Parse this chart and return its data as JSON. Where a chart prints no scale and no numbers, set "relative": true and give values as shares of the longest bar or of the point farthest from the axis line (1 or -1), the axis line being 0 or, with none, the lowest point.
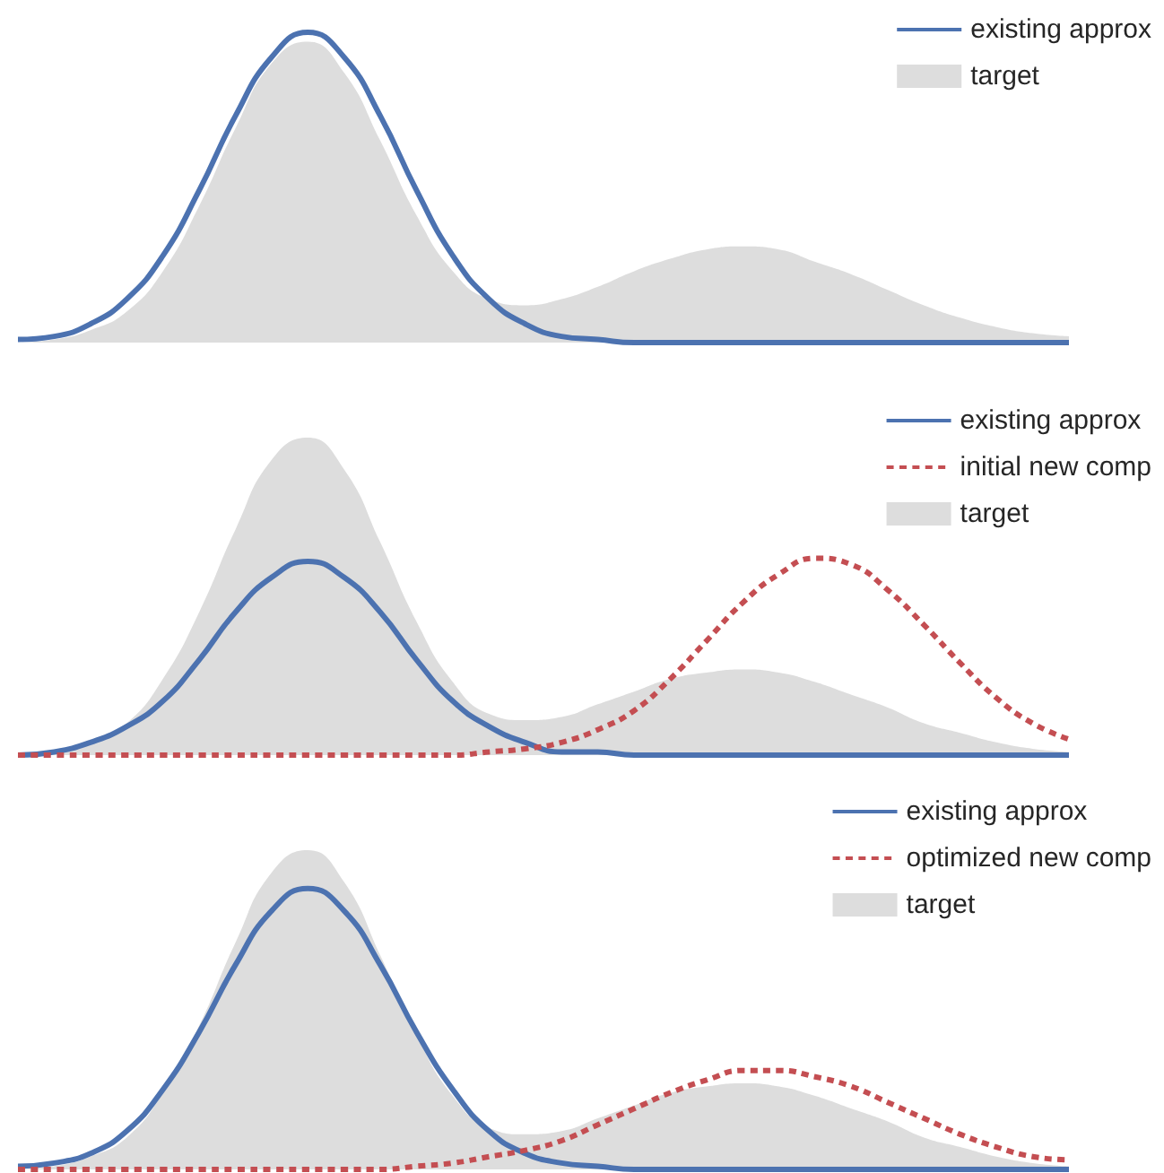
{
  "chart_data": [
    {
      "type": "line",
      "relative": true,
      "legend": "top right",
      "grid": false,
      "categories": [
        null,
        null,
        null,
        null,
        null,
        null,
        null,
        null,
        null,
        null,
        null,
        null,
        null,
        null,
        null,
        null,
        null,
        null,
        null,
        null,
        null,
        null,
        null,
        null,
        null,
        null,
        null,
        null,
        null,
        null
      ],
      "series": [
        {
          "name": "existing approx",
          "type": "line",
          "color": "#4c72b0",
          "line_style": "solid",
          "values": [
            0.01,
            0.02,
            0.06,
            0.14,
            0.28,
            0.49,
            0.73,
            0.92,
            1,
            0.92,
            0.73,
            0.49,
            0.28,
            0.14,
            0.06,
            0.02,
            0.01,
            0,
            0,
            0,
            0,
            0,
            0,
            0,
            0,
            0,
            0,
            0,
            0,
            0
          ]
        },
        {
          "name": "target",
          "type": "area",
          "color": "#dddddd",
          "values": [
            0,
            0.01,
            0.04,
            0.1,
            0.23,
            0.44,
            0.69,
            0.9,
            0.97,
            0.87,
            0.65,
            0.41,
            0.23,
            0.14,
            0.12,
            0.14,
            0.18,
            0.23,
            0.27,
            0.3,
            0.31,
            0.3,
            0.26,
            0.22,
            0.17,
            0.12,
            0.08,
            0.05,
            0.03,
            0.02
          ]
        }
      ]
    },
    {
      "type": "line",
      "relative": true,
      "legend": "top right",
      "grid": false,
      "categories": [
        null,
        null,
        null,
        null,
        null,
        null,
        null,
        null,
        null,
        null,
        null,
        null,
        null,
        null,
        null,
        null,
        null,
        null,
        null,
        null,
        null,
        null,
        null,
        null,
        null,
        null,
        null,
        null,
        null,
        null
      ],
      "series": [
        {
          "name": "existing approx",
          "type": "line",
          "color": "#4c72b0",
          "line_style": "solid",
          "values": [
            0,
            0.01,
            0.04,
            0.09,
            0.17,
            0.3,
            0.45,
            0.56,
            0.61,
            0.56,
            0.45,
            0.3,
            0.17,
            0.09,
            0.04,
            0.01,
            0.01,
            0,
            0,
            0,
            0,
            0,
            0,
            0,
            0,
            0,
            0,
            0,
            0,
            0
          ]
        },
        {
          "name": "initial new comp",
          "type": "line",
          "color": "#c44e52",
          "line_style": "dotted",
          "values": [
            0,
            0,
            0,
            0,
            0,
            0,
            0,
            0,
            0,
            0,
            0,
            0,
            0,
            0.01,
            0.02,
            0.04,
            0.08,
            0.14,
            0.24,
            0.36,
            0.48,
            0.57,
            0.62,
            0.6,
            0.52,
            0.41,
            0.29,
            0.18,
            0.1,
            0.05
          ]
        },
        {
          "name": "target",
          "type": "area",
          "color": "#dddddd",
          "values": [
            0,
            0.01,
            0.04,
            0.1,
            0.24,
            0.45,
            0.71,
            0.93,
            1,
            0.9,
            0.67,
            0.42,
            0.23,
            0.13,
            0.11,
            0.12,
            0.16,
            0.2,
            0.24,
            0.26,
            0.27,
            0.26,
            0.23,
            0.19,
            0.15,
            0.1,
            0.07,
            0.04,
            0.02,
            0.01
          ]
        }
      ]
    },
    {
      "type": "line",
      "relative": true,
      "legend": "top right",
      "grid": false,
      "categories": [
        null,
        null,
        null,
        null,
        null,
        null,
        null,
        null,
        null,
        null,
        null,
        null,
        null,
        null,
        null,
        null,
        null,
        null,
        null,
        null,
        null,
        null,
        null,
        null,
        null,
        null,
        null,
        null,
        null,
        null
      ],
      "series": [
        {
          "name": "existing approx",
          "type": "line",
          "color": "#4c72b0",
          "line_style": "solid",
          "values": [
            0.01,
            0.02,
            0.05,
            0.12,
            0.25,
            0.43,
            0.64,
            0.81,
            0.88,
            0.81,
            0.64,
            0.43,
            0.25,
            0.12,
            0.05,
            0.02,
            0.01,
            0,
            0,
            0,
            0,
            0,
            0,
            0,
            0,
            0,
            0,
            0,
            0,
            0
          ]
        },
        {
          "name": "optimized new comp",
          "type": "line",
          "color": "#c44e52",
          "line_style": "dotted",
          "values": [
            0,
            0,
            0,
            0,
            0,
            0,
            0,
            0,
            0,
            0,
            0,
            0.01,
            0.02,
            0.04,
            0.06,
            0.09,
            0.14,
            0.19,
            0.24,
            0.28,
            0.31,
            0.31,
            0.29,
            0.26,
            0.21,
            0.16,
            0.11,
            0.07,
            0.04,
            0.03
          ]
        },
        {
          "name": "target",
          "type": "area",
          "color": "#dddddd",
          "values": [
            0,
            0.01,
            0.04,
            0.1,
            0.24,
            0.45,
            0.71,
            0.93,
            1,
            0.9,
            0.67,
            0.42,
            0.23,
            0.13,
            0.11,
            0.12,
            0.16,
            0.2,
            0.24,
            0.26,
            0.27,
            0.26,
            0.23,
            0.19,
            0.15,
            0.1,
            0.07,
            0.04,
            0.02,
            0.01
          ]
        }
      ]
    }
  ]
}
